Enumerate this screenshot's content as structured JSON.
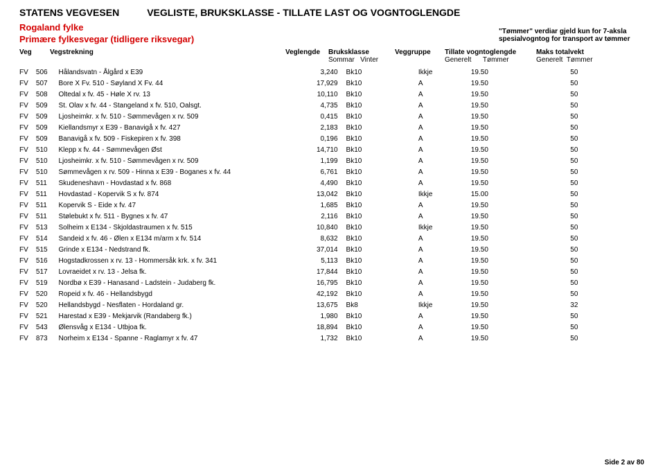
{
  "header": {
    "agency": "STATENS VEGVESEN",
    "title": "VEGLISTE, BRUKSKLASSE - TILLATE LAST OG VOGNTOGLENGDE",
    "region": "Rogaland fylke",
    "subregion": "Primære fylkesvegar (tidligere riksvegar)",
    "note_line1": "\"Tømmer\" verdiar gjeld kun for 7-aksla",
    "note_line2": "spesialvogntog for transport av tømmer"
  },
  "columns": {
    "veg": "Veg",
    "strekning": "Vegstrekning",
    "lengde": "Veglengde",
    "bruksklasse": "Bruksklasse",
    "bk_sub1": "Sommar",
    "bk_sub2": "Vinter",
    "gruppe": "Veggruppe",
    "vogntog": "Tillate vogntoglengde",
    "vogn_sub1": "Generelt",
    "vogn_sub2": "Tømmer",
    "maks": "Maks totalvekt",
    "maks_sub1": "Generelt",
    "maks_sub2": "Tømmer"
  },
  "rows": [
    {
      "pfx": "FV",
      "num": "506",
      "strek": "Hålandsvatn - Ålgård x E39",
      "len": "3,240",
      "bk1": "Bk10",
      "bk2": "",
      "grp": "Ikkje",
      "v1": "19.50",
      "v2": "",
      "m1": "50",
      "m2": ""
    },
    {
      "pfx": "FV",
      "num": "507",
      "strek": "Bore X Fv. 510 - Søyland X Fv. 44",
      "len": "17,929",
      "bk1": "Bk10",
      "bk2": "",
      "grp": "A",
      "v1": "19.50",
      "v2": "",
      "m1": "50",
      "m2": ""
    },
    {
      "pfx": "FV",
      "num": "508",
      "strek": "Oltedal x fv. 45 - Høle X rv. 13",
      "len": "10,110",
      "bk1": "Bk10",
      "bk2": "",
      "grp": "A",
      "v1": "19.50",
      "v2": "",
      "m1": "50",
      "m2": ""
    },
    {
      "pfx": "FV",
      "num": "509",
      "strek": "St. Olav x fv. 44 - Stangeland x fv. 510, Oalsgt.",
      "len": "4,735",
      "bk1": "Bk10",
      "bk2": "",
      "grp": "A",
      "v1": "19.50",
      "v2": "",
      "m1": "50",
      "m2": ""
    },
    {
      "pfx": "FV",
      "num": "509",
      "strek": "Ljosheimkr. x fv. 510 - Sømmevågen x rv. 509",
      "len": "0,415",
      "bk1": "Bk10",
      "bk2": "",
      "grp": "A",
      "v1": "19.50",
      "v2": "",
      "m1": "50",
      "m2": ""
    },
    {
      "pfx": "FV",
      "num": "509",
      "strek": "Kiellandsmyr x E39 - Banavigå x fv. 427",
      "len": "2,183",
      "bk1": "Bk10",
      "bk2": "",
      "grp": "A",
      "v1": "19.50",
      "v2": "",
      "m1": "50",
      "m2": ""
    },
    {
      "pfx": "FV",
      "num": "509",
      "strek": "Banavigå x fv. 509 - Fiskepiren x fv. 398",
      "len": "0,196",
      "bk1": "Bk10",
      "bk2": "",
      "grp": "A",
      "v1": "19.50",
      "v2": "",
      "m1": "50",
      "m2": ""
    },
    {
      "pfx": "FV",
      "num": "510",
      "strek": "Klepp x fv. 44 - Sømmevågen Øst",
      "len": "14,710",
      "bk1": "Bk10",
      "bk2": "",
      "grp": "A",
      "v1": "19.50",
      "v2": "",
      "m1": "50",
      "m2": ""
    },
    {
      "pfx": "FV",
      "num": "510",
      "strek": "Ljosheimkr. x fv. 510 - Sømmevågen x rv. 509",
      "len": "1,199",
      "bk1": "Bk10",
      "bk2": "",
      "grp": "A",
      "v1": "19.50",
      "v2": "",
      "m1": "50",
      "m2": ""
    },
    {
      "pfx": "FV",
      "num": "510",
      "strek": "Sømmevågen x rv. 509 - Hinna x E39 - Boganes x fv. 44",
      "len": "6,761",
      "bk1": "Bk10",
      "bk2": "",
      "grp": "A",
      "v1": "19.50",
      "v2": "",
      "m1": "50",
      "m2": ""
    },
    {
      "pfx": "FV",
      "num": "511",
      "strek": "Skudeneshavn - Hovdastad x fv. 868",
      "len": "4,490",
      "bk1": "Bk10",
      "bk2": "",
      "grp": "A",
      "v1": "19.50",
      "v2": "",
      "m1": "50",
      "m2": ""
    },
    {
      "pfx": "FV",
      "num": "511",
      "strek": "Hovdastad - Kopervik S x fv. 874",
      "len": "13,042",
      "bk1": "Bk10",
      "bk2": "",
      "grp": "Ikkje",
      "v1": "15.00",
      "v2": "",
      "m1": "50",
      "m2": ""
    },
    {
      "pfx": "FV",
      "num": "511",
      "strek": "Kopervik S - Eide x fv. 47",
      "len": "1,685",
      "bk1": "Bk10",
      "bk2": "",
      "grp": "A",
      "v1": "19.50",
      "v2": "",
      "m1": "50",
      "m2": ""
    },
    {
      "pfx": "FV",
      "num": "511",
      "strek": "Stølebukt x fv. 511 - Bygnes x fv. 47",
      "len": "2,116",
      "bk1": "Bk10",
      "bk2": "",
      "grp": "A",
      "v1": "19.50",
      "v2": "",
      "m1": "50",
      "m2": ""
    },
    {
      "pfx": "FV",
      "num": "513",
      "strek": "Solheim x E134 - Skjoldastraumen x fv. 515",
      "len": "10,840",
      "bk1": "Bk10",
      "bk2": "",
      "grp": "Ikkje",
      "v1": "19.50",
      "v2": "",
      "m1": "50",
      "m2": ""
    },
    {
      "pfx": "FV",
      "num": "514",
      "strek": "Sandeid x fv. 46 - Ølen x E134 m/arm x fv. 514",
      "len": "8,632",
      "bk1": "Bk10",
      "bk2": "",
      "grp": "A",
      "v1": "19.50",
      "v2": "",
      "m1": "50",
      "m2": ""
    },
    {
      "pfx": "FV",
      "num": "515",
      "strek": "Grinde x E134 - Nedstrand fk.",
      "len": "37,014",
      "bk1": "Bk10",
      "bk2": "",
      "grp": "A",
      "v1": "19.50",
      "v2": "",
      "m1": "50",
      "m2": ""
    },
    {
      "pfx": "FV",
      "num": "516",
      "strek": "Hogstadkrossen x rv. 13 - Hommersåk krk. x fv. 341",
      "len": "5,113",
      "bk1": "Bk10",
      "bk2": "",
      "grp": "A",
      "v1": "19.50",
      "v2": "",
      "m1": "50",
      "m2": ""
    },
    {
      "pfx": "FV",
      "num": "517",
      "strek": "Lovraeidet x rv. 13 - Jelsa fk.",
      "len": "17,844",
      "bk1": "Bk10",
      "bk2": "",
      "grp": "A",
      "v1": "19.50",
      "v2": "",
      "m1": "50",
      "m2": ""
    },
    {
      "pfx": "FV",
      "num": "519",
      "strek": "Nordbø x E39 - Hanasand - Ladstein - Judaberg fk.",
      "len": "16,795",
      "bk1": "Bk10",
      "bk2": "",
      "grp": "A",
      "v1": "19.50",
      "v2": "",
      "m1": "50",
      "m2": ""
    },
    {
      "pfx": "FV",
      "num": "520",
      "strek": "Ropeid x fv. 46 - Hellandsbygd",
      "len": "42,192",
      "bk1": "Bk10",
      "bk2": "",
      "grp": "A",
      "v1": "19.50",
      "v2": "",
      "m1": "50",
      "m2": ""
    },
    {
      "pfx": "FV",
      "num": "520",
      "strek": "Hellandsbygd - Nesflaten - Hordaland gr.",
      "len": "13,675",
      "bk1": "Bk8",
      "bk2": "",
      "grp": "Ikkje",
      "v1": "19.50",
      "v2": "",
      "m1": "32",
      "m2": ""
    },
    {
      "pfx": "FV",
      "num": "521",
      "strek": "Harestad x E39 - Mekjarvik (Randaberg fk.)",
      "len": "1,980",
      "bk1": "Bk10",
      "bk2": "",
      "grp": "A",
      "v1": "19.50",
      "v2": "",
      "m1": "50",
      "m2": ""
    },
    {
      "pfx": "FV",
      "num": "543",
      "strek": "Ølensvåg x E134 - Utbjoa fk.",
      "len": "18,894",
      "bk1": "Bk10",
      "bk2": "",
      "grp": "A",
      "v1": "19.50",
      "v2": "",
      "m1": "50",
      "m2": ""
    },
    {
      "pfx": "FV",
      "num": "873",
      "strek": "Norheim x E134 - Spanne - Raglamyr x fv. 47",
      "len": "1,732",
      "bk1": "Bk10",
      "bk2": "",
      "grp": "A",
      "v1": "19.50",
      "v2": "",
      "m1": "50",
      "m2": ""
    }
  ],
  "footer": {
    "text": "Side 2 av 80"
  },
  "style": {
    "accent_color": "#d40000",
    "text_color": "#000000",
    "background": "#ffffff",
    "font_size_header": 14,
    "font_size_body": 10
  }
}
